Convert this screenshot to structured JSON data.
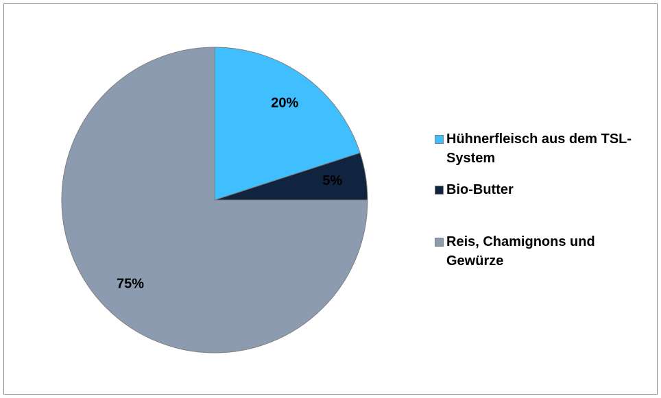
{
  "chart_data": {
    "type": "pie",
    "categories": [
      "Hühnerfleisch aus dem TSL- System",
      "Bio-Butter",
      "Reis, Chamignons und Gewürze"
    ],
    "values": [
      20,
      5,
      75
    ],
    "value_labels": [
      "20%",
      "5%",
      "75%"
    ],
    "colors": [
      "#40BFFF",
      "#10233F",
      "#8C9BAF"
    ],
    "legend": "right"
  }
}
